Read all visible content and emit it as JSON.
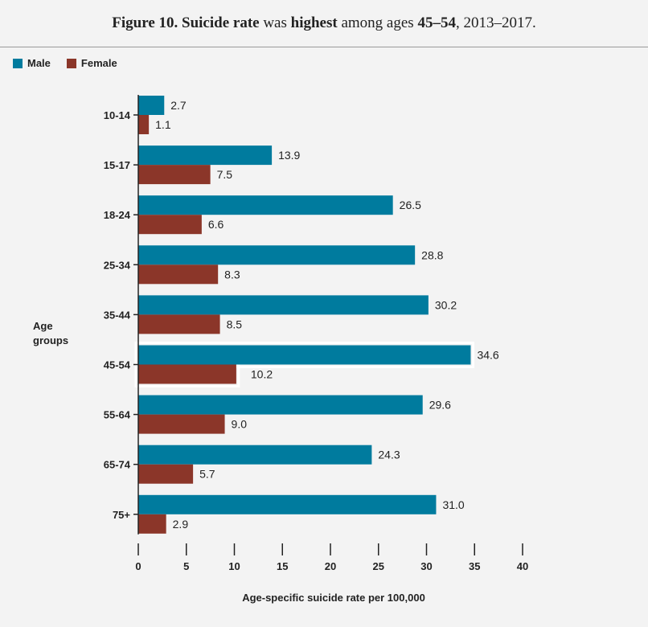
{
  "title": {
    "prefix": "Figure 10. Suicide rate",
    "mid1": " was ",
    "emph": "highest",
    "mid2": " among ages ",
    "age": "45–54",
    "suffix": ", 2013–2017."
  },
  "colors": {
    "male": "#007b9e",
    "female": "#8b3629",
    "highlight_border": "#ffffff"
  },
  "legend": {
    "male_label": "Male",
    "female_label": "Female"
  },
  "chart_data": {
    "type": "bar",
    "orientation": "horizontal",
    "categories": [
      "10-14",
      "15-17",
      "18-24",
      "25-34",
      "35-44",
      "45-54",
      "55-64",
      "65-74",
      "75+"
    ],
    "series": [
      {
        "name": "Male",
        "values": [
          2.7,
          13.9,
          26.5,
          28.8,
          30.2,
          34.6,
          29.6,
          24.3,
          31.0
        ]
      },
      {
        "name": "Female",
        "values": [
          1.1,
          7.5,
          6.6,
          8.3,
          8.5,
          10.2,
          9.0,
          5.7,
          2.9
        ]
      }
    ],
    "value_labels": {
      "Male": [
        "2.7",
        "13.9",
        "26.5",
        "28.8",
        "30.2",
        "34.6",
        "29.6",
        "24.3",
        "31.0"
      ],
      "Female": [
        "1.1",
        "7.5",
        "6.6",
        "8.3",
        "8.5",
        "10.2",
        "9.0",
        "5.7",
        "2.9"
      ]
    },
    "highlighted_category": "45-54",
    "xlim": [
      0,
      40
    ],
    "xticks": [
      0,
      5,
      10,
      15,
      20,
      25,
      30,
      35,
      40
    ],
    "xlabel": "Age-specific suicide rate per 100,000",
    "ylabel_line1": "Age",
    "ylabel_line2": "groups",
    "grid": false,
    "legend_position": "top-left"
  }
}
